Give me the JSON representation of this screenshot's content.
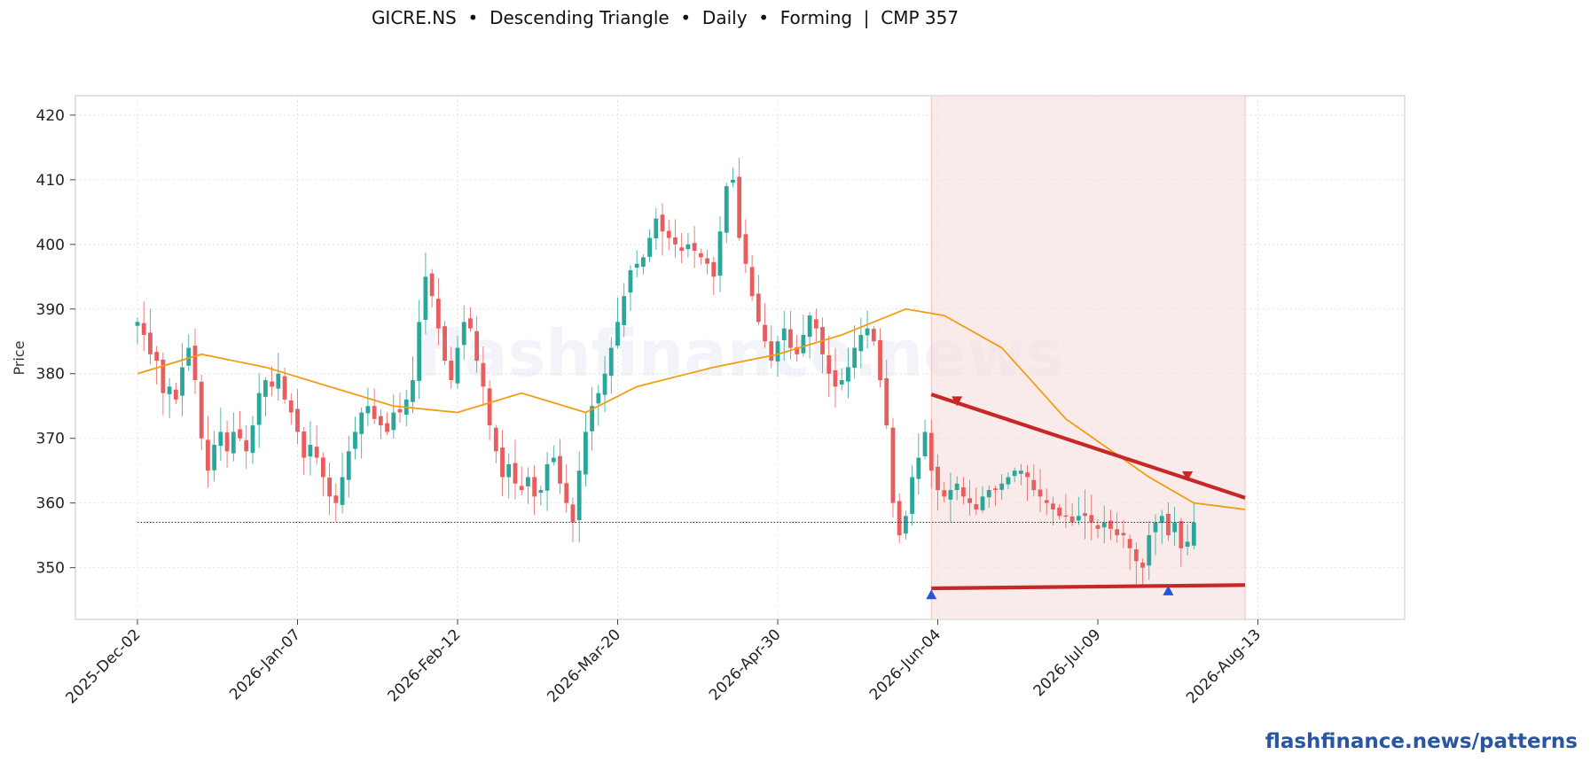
{
  "chart_data": {
    "type": "candlestick",
    "title": "GICRE.NS  •  Descending Triangle  •  Daily  •  Forming  |  CMP 357",
    "ylabel": "Price",
    "xlabel": "",
    "ylim": [
      342,
      423
    ],
    "y_ticks": [
      350,
      360,
      370,
      380,
      390,
      400,
      410,
      420
    ],
    "x_tick_labels": [
      "2025-Dec-02",
      "2026-Jan-07",
      "2026-Feb-12",
      "2026-Mar-20",
      "2026-Apr-30",
      "2026-Jun-04",
      "2026-Jul-09",
      "2026-Aug-13"
    ],
    "grid": true,
    "watermark": "flashfinance.news",
    "cmp": 357,
    "colors": {
      "up": "#2aa79b",
      "down": "#e85d5d",
      "ma": "#f39c12",
      "pattern": "#c62828",
      "zone": "#f6dede",
      "marker_high": "#c62828",
      "marker_low": "#2554e0"
    },
    "closes": [
      388,
      386,
      383,
      382,
      377,
      378,
      376,
      381,
      384,
      379,
      370,
      365,
      369,
      371,
      368,
      371,
      370,
      368,
      372,
      377,
      379,
      378,
      380,
      376,
      374,
      371,
      367,
      369,
      367,
      364,
      361,
      360,
      364,
      368,
      371,
      374,
      375,
      373,
      372,
      371,
      374,
      374,
      376,
      379,
      388,
      395,
      392,
      387,
      382,
      379,
      384,
      388,
      387,
      382,
      378,
      372,
      368,
      364,
      366,
      363,
      362,
      364,
      361,
      362,
      366,
      367,
      363,
      360,
      357,
      365,
      371,
      375,
      377,
      380,
      384,
      388,
      392,
      396,
      397,
      398,
      401,
      404,
      402,
      401,
      400,
      399,
      400,
      399,
      398,
      397,
      395,
      402,
      409,
      410,
      401,
      397,
      392,
      388,
      385,
      382,
      385,
      387,
      384,
      383,
      386,
      389,
      387,
      383,
      380,
      378,
      379,
      381,
      384,
      386,
      387,
      385,
      379,
      372,
      360,
      355,
      358,
      364,
      367,
      371,
      365,
      362,
      361,
      362,
      363,
      361,
      360,
      359,
      361,
      362,
      362,
      363,
      364,
      365,
      365,
      364,
      362,
      361,
      360,
      359,
      358,
      358,
      357,
      358,
      358,
      357,
      356,
      357,
      356,
      355,
      355,
      353,
      351,
      350,
      355,
      357,
      358,
      355,
      357,
      353,
      354,
      357
    ],
    "moving_average": [
      [
        0,
        380
      ],
      [
        10,
        383
      ],
      [
        20,
        381
      ],
      [
        30,
        378
      ],
      [
        40,
        375
      ],
      [
        50,
        374
      ],
      [
        60,
        377
      ],
      [
        70,
        374
      ],
      [
        78,
        378
      ],
      [
        90,
        381
      ],
      [
        100,
        383
      ],
      [
        110,
        386
      ],
      [
        120,
        390
      ],
      [
        126,
        389
      ],
      [
        135,
        384
      ],
      [
        145,
        373
      ],
      [
        158,
        364
      ],
      [
        165,
        360
      ],
      [
        173,
        359
      ]
    ],
    "pattern_zone": {
      "start_index": 124,
      "end_index": 173
    },
    "resistance_line": {
      "start": [
        124,
        376.8
      ],
      "end": [
        173,
        360.8
      ]
    },
    "support_line": {
      "start": [
        124,
        346.8
      ],
      "end": [
        173,
        347.3
      ]
    },
    "reference_line": 357,
    "swing_highs": [
      [
        128,
        375.8
      ],
      [
        164,
        364.2
      ]
    ],
    "swing_lows": [
      [
        124,
        345.8
      ],
      [
        161,
        346.4
      ]
    ]
  },
  "branding": {
    "url": "flashfinance.news/patterns"
  }
}
